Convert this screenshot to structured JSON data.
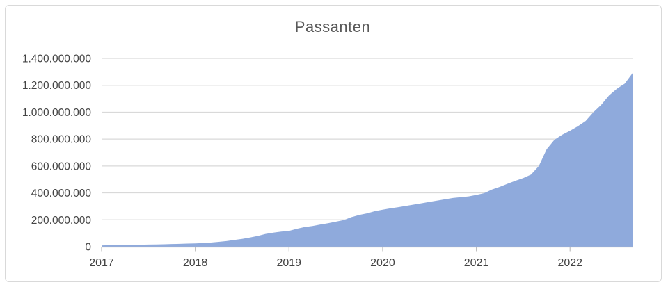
{
  "chart_data": {
    "type": "area",
    "title": "Passanten",
    "x_monthly": [
      "2017-01",
      "2017-02",
      "2017-03",
      "2017-04",
      "2017-05",
      "2017-06",
      "2017-07",
      "2017-08",
      "2017-09",
      "2017-10",
      "2017-11",
      "2017-12",
      "2018-01",
      "2018-02",
      "2018-03",
      "2018-04",
      "2018-05",
      "2018-06",
      "2018-07",
      "2018-08",
      "2018-09",
      "2018-10",
      "2018-11",
      "2018-12",
      "2019-01",
      "2019-02",
      "2019-03",
      "2019-04",
      "2019-05",
      "2019-06",
      "2019-07",
      "2019-08",
      "2019-09",
      "2019-10",
      "2019-11",
      "2019-12",
      "2020-01",
      "2020-02",
      "2020-03",
      "2020-04",
      "2020-05",
      "2020-06",
      "2020-07",
      "2020-08",
      "2020-09",
      "2020-10",
      "2020-11",
      "2020-12",
      "2021-01",
      "2021-02",
      "2021-03",
      "2021-04",
      "2021-05",
      "2021-06",
      "2021-07",
      "2021-08",
      "2021-09",
      "2021-10",
      "2021-11",
      "2021-12",
      "2022-01",
      "2022-02",
      "2022-03",
      "2022-04",
      "2022-05",
      "2022-06",
      "2022-07",
      "2022-08",
      "2022-09"
    ],
    "values": [
      10000000,
      11000000,
      12000000,
      13000000,
      14000000,
      15000000,
      16000000,
      17000000,
      18000000,
      20000000,
      21000000,
      23000000,
      25000000,
      27000000,
      31000000,
      36000000,
      42000000,
      50000000,
      58000000,
      68000000,
      80000000,
      95000000,
      105000000,
      112000000,
      118000000,
      133000000,
      146000000,
      154000000,
      165000000,
      174000000,
      186000000,
      198000000,
      220000000,
      236000000,
      248000000,
      264000000,
      275000000,
      285000000,
      294000000,
      303000000,
      313000000,
      323000000,
      333000000,
      343000000,
      353000000,
      362000000,
      368000000,
      374000000,
      385000000,
      398000000,
      425000000,
      445000000,
      468000000,
      490000000,
      510000000,
      536000000,
      600000000,
      725000000,
      795000000,
      832000000,
      862000000,
      896000000,
      935000000,
      1000000000,
      1055000000,
      1125000000,
      1175000000,
      1212000000,
      1290000000
    ],
    "ylim": [
      0,
      1400000000
    ],
    "y_ticks": [
      {
        "value": 0,
        "label": "0"
      },
      {
        "value": 200000000,
        "label": "200.000.000"
      },
      {
        "value": 400000000,
        "label": "400.000.000"
      },
      {
        "value": 600000000,
        "label": "600.000.000"
      },
      {
        "value": 800000000,
        "label": "800.000.000"
      },
      {
        "value": 1000000000,
        "label": "1.000.000.000"
      },
      {
        "value": 1200000000,
        "label": "1.200.000.000"
      },
      {
        "value": 1400000000,
        "label": "1.400.000.000"
      }
    ],
    "x_ticks": [
      {
        "label": "2017",
        "month_index": 0
      },
      {
        "label": "2018",
        "month_index": 12
      },
      {
        "label": "2019",
        "month_index": 24
      },
      {
        "label": "2020",
        "month_index": 36
      },
      {
        "label": "2021",
        "month_index": 48
      },
      {
        "label": "2022",
        "month_index": 60
      }
    ],
    "grid": true,
    "legend": "none",
    "colors": {
      "area_fill": "#8faadc",
      "gridline": "#d9d9d9",
      "axis_line": "#bfbfbf",
      "title_text": "#595959",
      "label_text": "#444444",
      "frame_border": "#d9d9d9"
    }
  }
}
